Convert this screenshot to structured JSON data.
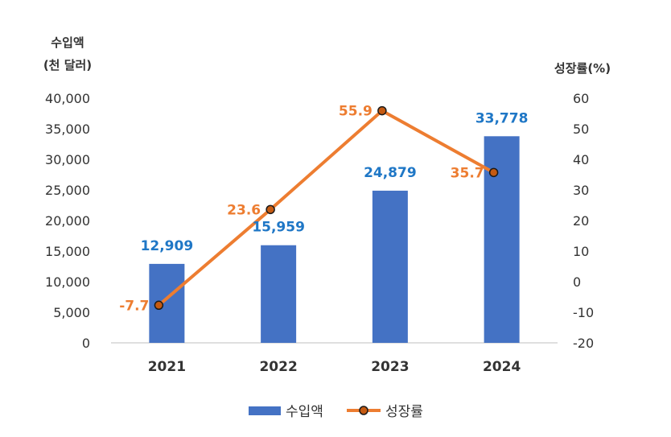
{
  "chart_data": {
    "type": "bar",
    "categories": [
      "2021",
      "2022",
      "2023",
      "2024"
    ],
    "y_left": {
      "title_lines": [
        "수입액",
        "(천 달러)"
      ],
      "ylim": [
        0,
        40000
      ],
      "ticks": [
        "0",
        "5,000",
        "10,000",
        "15,000",
        "20,000",
        "25,000",
        "30,000",
        "35,000",
        "40,000"
      ],
      "tick_values": [
        0,
        5000,
        10000,
        15000,
        20000,
        25000,
        30000,
        35000,
        40000
      ]
    },
    "y_right": {
      "title": "성장률(%)",
      "ylim": [
        -20,
        60
      ],
      "ticks": [
        "-20",
        "-10",
        "0",
        "10",
        "20",
        "30",
        "40",
        "50",
        "60"
      ],
      "tick_values": [
        -20,
        -10,
        0,
        10,
        20,
        30,
        40,
        50,
        60
      ]
    },
    "series": [
      {
        "name": "수입액",
        "type": "bar",
        "axis": "left",
        "values": [
          12909,
          15959,
          24879,
          33778
        ],
        "labels": [
          "12,909",
          "15,959",
          "24,879",
          "33,778"
        ],
        "color": "#4472C4",
        "label_color": "#1F77C6"
      },
      {
        "name": "성장률",
        "type": "line",
        "axis": "right",
        "values": [
          -7.7,
          23.6,
          55.9,
          35.7
        ],
        "labels": [
          "-7.7",
          "23.6",
          "55.9",
          "35.7"
        ],
        "color": "#ED7D31",
        "label_color": "#ED7D31",
        "marker_fill": "#C55A11"
      }
    ],
    "grid": false,
    "legend_position": "bottom"
  }
}
